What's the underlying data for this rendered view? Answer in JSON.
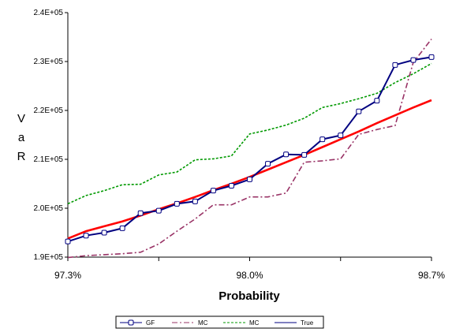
{
  "chart_data": {
    "type": "line",
    "title": "",
    "xlabel": "Probability",
    "ylabel": "VaR",
    "x_tick_labels": [
      "97.3%",
      "98.0%",
      "98.7%"
    ],
    "x_ticks": [
      0.973,
      0.98,
      0.987
    ],
    "xlim": [
      0.973,
      0.987
    ],
    "ylim": [
      190000,
      240000
    ],
    "y_ticks": [
      190000,
      200000,
      210000,
      220000,
      230000,
      240000
    ],
    "y_tick_labels": [
      "1.9E+05",
      "2.0E+05",
      "2.1E+05",
      "2.2E+05",
      "2.3E+05",
      "2.4E+05"
    ],
    "grid": false,
    "legend": "bottom",
    "x": [
      0.973,
      0.9737,
      0.9744,
      0.9751,
      0.9758,
      0.9765,
      0.9772,
      0.9779,
      0.9786,
      0.9793,
      0.98,
      0.9807,
      0.9814,
      0.9821,
      0.9828,
      0.9835,
      0.9842,
      0.9849,
      0.9856,
      0.9863,
      0.987
    ],
    "series": [
      {
        "name": "GF",
        "color": "#000080",
        "style": "solid-markers",
        "values": [
          193200,
          194400,
          195000,
          195900,
          199000,
          199500,
          200900,
          201400,
          203600,
          204600,
          205900,
          209100,
          211000,
          210900,
          214100,
          214900,
          219800,
          222000,
          229300,
          230300,
          230900
        ]
      },
      {
        "name": "MC",
        "color": "#993366",
        "style": "dash-dot",
        "values": [
          189900,
          190300,
          190500,
          190700,
          191000,
          192700,
          195300,
          197800,
          200700,
          200700,
          202300,
          202300,
          203100,
          209400,
          209700,
          210100,
          215100,
          216100,
          216900,
          229800,
          234600
        ]
      },
      {
        "name": "MC",
        "color": "#009900",
        "style": "dotted",
        "values": [
          200900,
          202600,
          203600,
          204800,
          204900,
          206800,
          207400,
          209900,
          210100,
          210700,
          215200,
          216000,
          217000,
          218400,
          220600,
          221400,
          222400,
          223500,
          225700,
          227500,
          229600
        ]
      },
      {
        "name": "True",
        "color": "#ff0000",
        "style": "solid",
        "values": [
          193800,
          195300,
          196300,
          197300,
          198500,
          199800,
          201000,
          202300,
          203700,
          205000,
          206400,
          207900,
          209400,
          210900,
          212500,
          214100,
          215700,
          217400,
          219000,
          220600,
          222100
        ]
      }
    ]
  }
}
